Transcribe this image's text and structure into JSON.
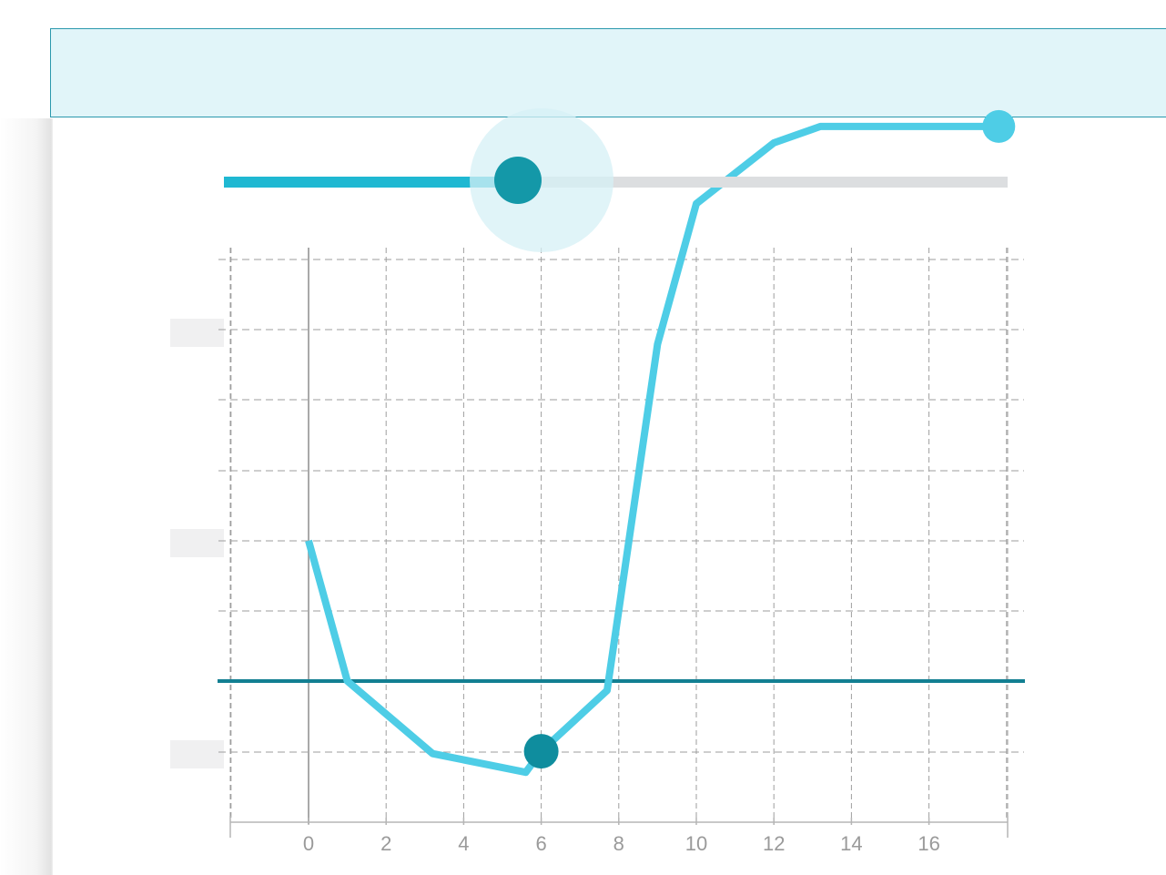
{
  "slider": {
    "value_fraction": 0.375,
    "active_color": "#1fb8d2",
    "inactive_color": "#dcdee0",
    "thumb_color": "#1498a8",
    "halo_color": "#d6f0f5"
  },
  "colors": {
    "series": "#4ecde6",
    "reference_line": "#127f92",
    "marker": "#0f8d9e",
    "grid": "#9e9e9e",
    "label_placeholder": "#f0f0f1"
  },
  "chart_data": {
    "type": "line",
    "xlabel": "",
    "ylabel": "",
    "title": "",
    "xlim": [
      -2,
      18
    ],
    "x_ticks": [
      "0",
      "2",
      "4",
      "6",
      "8",
      "10",
      "12",
      "14",
      "16"
    ],
    "x_tick_values": [
      0,
      2,
      4,
      6,
      8,
      10,
      12,
      14,
      16
    ],
    "series": [
      {
        "points": [
          [
            0,
            0.4
          ],
          [
            1,
            -0.2
          ],
          [
            3.2,
            -0.51
          ],
          [
            5.6,
            -0.59
          ],
          [
            6.0,
            -0.5
          ],
          [
            7.7,
            -0.24
          ],
          [
            9.0,
            1.24
          ],
          [
            10.0,
            1.84
          ],
          [
            12.0,
            2.1
          ],
          [
            13.2,
            2.17
          ],
          [
            17.8,
            2.17
          ]
        ]
      }
    ],
    "reference_y": -0.2,
    "marker_point": [
      6.0,
      -0.5
    ],
    "endpoint": [
      17.8,
      2.17
    ],
    "grid": true
  }
}
